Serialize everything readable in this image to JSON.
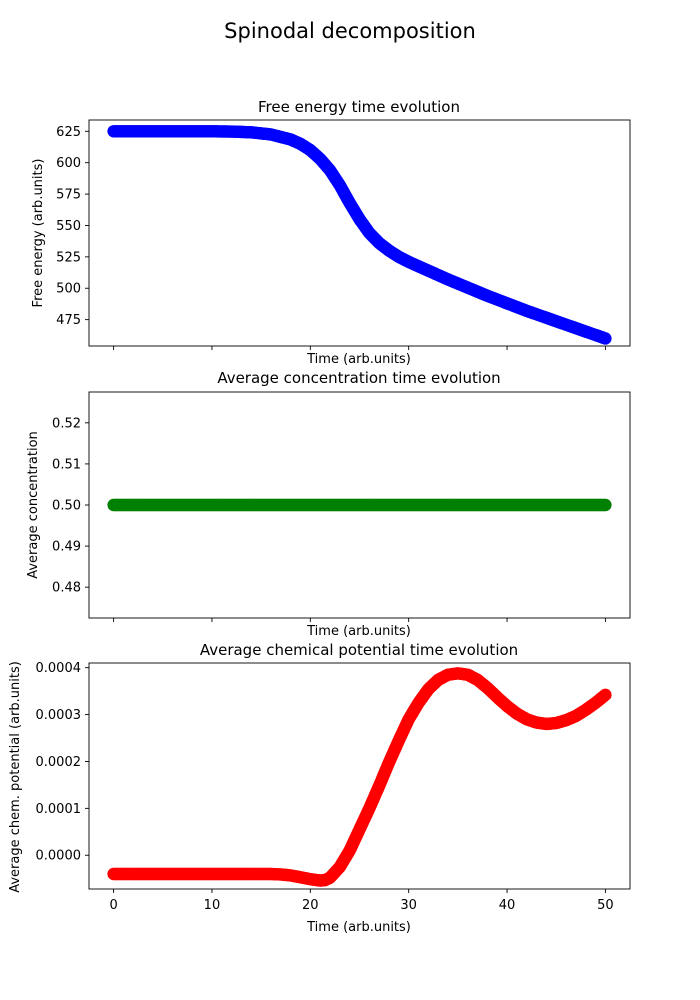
{
  "figure": {
    "suptitle": "Spinodal decomposition"
  },
  "chart_data": [
    {
      "type": "scatter",
      "title": "Free energy time evolution",
      "xlabel": "Time (arb.units)",
      "ylabel": "Free energy (arb.units)",
      "xlim": [
        -2.5,
        52.5
      ],
      "ylim": [
        454,
        634
      ],
      "yticks": [
        475,
        500,
        525,
        550,
        575,
        600,
        625
      ],
      "ytick_labels": [
        "475",
        "500",
        "525",
        "550",
        "575",
        "600",
        "625"
      ],
      "show_xtick_labels": false,
      "grid": false,
      "series": [
        {
          "color": "#0000ff",
          "x": [
            0,
            2,
            4,
            6,
            8,
            10,
            12,
            14,
            16,
            18,
            19,
            20,
            21,
            22,
            23,
            24,
            25,
            26,
            27,
            28,
            29,
            30,
            32,
            34,
            36,
            38,
            40,
            42,
            44,
            46,
            48,
            50
          ],
          "y": [
            625,
            625,
            625,
            625,
            625,
            625,
            624.8,
            624.2,
            622.5,
            618.5,
            615,
            610,
            603,
            594,
            582,
            568,
            555,
            544,
            536,
            530,
            525,
            521,
            514,
            507,
            500.5,
            494,
            488,
            482,
            476.5,
            471,
            465.5,
            460
          ]
        }
      ]
    },
    {
      "type": "scatter",
      "title": "Average concentration time evolution",
      "xlabel": "Time (arb.units)",
      "ylabel": "Average concentration",
      "xlim": [
        -2.5,
        52.5
      ],
      "ylim": [
        0.4725,
        0.5275
      ],
      "yticks": [
        0.48,
        0.49,
        0.5,
        0.51,
        0.52
      ],
      "ytick_labels": [
        "0.48",
        "0.49",
        "0.50",
        "0.51",
        "0.52"
      ],
      "show_xtick_labels": false,
      "grid": false,
      "series": [
        {
          "color": "#008000",
          "x": [
            0,
            5,
            10,
            15,
            20,
            25,
            30,
            35,
            40,
            45,
            50
          ],
          "y": [
            0.5,
            0.5,
            0.5,
            0.5,
            0.5,
            0.5,
            0.5,
            0.5,
            0.5,
            0.5,
            0.5
          ]
        }
      ]
    },
    {
      "type": "scatter",
      "title": "Average chemical potential time evolution",
      "xlabel": "Time (arb.units)",
      "ylabel": "Average chem. potential (arb.units)",
      "xlim": [
        -2.5,
        52.5
      ],
      "ylim": [
        -7.2e-05,
        0.00041
      ],
      "yticks": [
        0.0,
        0.0001,
        0.0002,
        0.0003,
        0.0004
      ],
      "ytick_labels": [
        "0.0000",
        "0.0001",
        "0.0002",
        "0.0003",
        "0.0004"
      ],
      "xticks": [
        0,
        10,
        20,
        30,
        40,
        50
      ],
      "xtick_labels": [
        "0",
        "10",
        "20",
        "30",
        "40",
        "50"
      ],
      "show_xtick_labels": true,
      "grid": false,
      "series": [
        {
          "color": "#ff0000",
          "x": [
            0,
            4,
            8,
            12,
            16,
            17,
            18,
            19,
            20,
            21,
            21.5,
            22,
            23,
            24,
            25,
            26,
            27,
            28,
            29,
            30,
            31,
            32,
            33,
            34,
            35,
            36,
            37,
            38,
            39,
            40,
            41,
            42,
            43,
            44,
            45,
            46,
            47,
            48,
            49,
            50
          ],
          "y": [
            -4e-05,
            -4e-05,
            -4e-05,
            -4e-05,
            -4e-05,
            -4.1e-05,
            -4.3e-05,
            -4.7e-05,
            -5.1e-05,
            -5.4e-05,
            -5.3e-05,
            -4.8e-05,
            -2.5e-05,
            1e-05,
            5.5e-05,
            0.0001,
            0.000148,
            0.000198,
            0.000245,
            0.00029,
            0.000325,
            0.000354,
            0.000374,
            0.000385,
            0.000388,
            0.000385,
            0.000374,
            0.000357,
            0.000337,
            0.000318,
            0.000302,
            0.00029,
            0.000283,
            0.00028,
            0.000282,
            0.000288,
            0.000297,
            0.00031,
            0.000325,
            0.000342
          ]
        }
      ]
    }
  ]
}
